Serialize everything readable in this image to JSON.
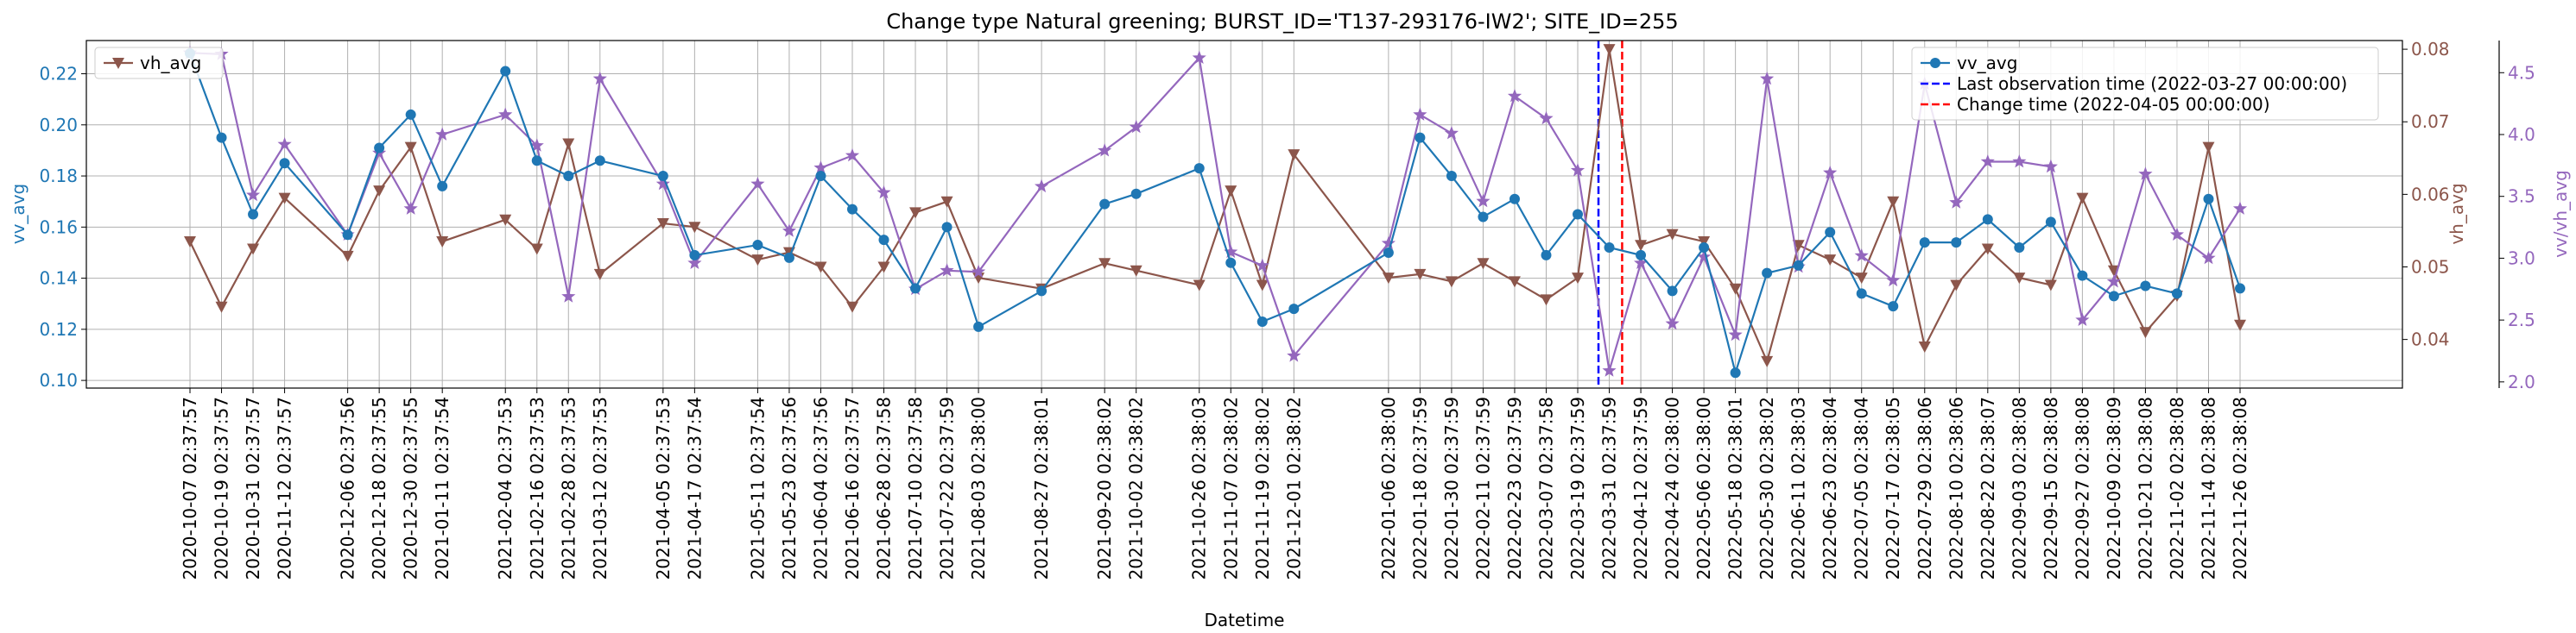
{
  "chart_data": {
    "type": "line",
    "title": "Change type Natural greening; BURST_ID='T137-293176-IW2'; SITE_ID=255",
    "xlabel": "Datetime",
    "dates": [
      "2020-10-07 02:37:57",
      "2020-10-19 02:37:57",
      "2020-10-31 02:37:57",
      "2020-11-12 02:37:57",
      "2020-12-06 02:37:56",
      "2020-12-18 02:37:55",
      "2020-12-30 02:37:55",
      "2021-01-11 02:37:54",
      "2021-02-04 02:37:53",
      "2021-02-16 02:37:53",
      "2021-02-28 02:37:53",
      "2021-03-12 02:37:53",
      "2021-04-05 02:37:53",
      "2021-04-17 02:37:54",
      "2021-05-11 02:37:54",
      "2021-05-23 02:37:56",
      "2021-06-04 02:37:56",
      "2021-06-16 02:37:57",
      "2021-06-28 02:37:58",
      "2021-07-10 02:37:58",
      "2021-07-22 02:37:59",
      "2021-08-03 02:38:00",
      "2021-08-27 02:38:01",
      "2021-09-20 02:38:02",
      "2021-10-02 02:38:02",
      "2021-10-26 02:38:03",
      "2021-11-07 02:38:02",
      "2021-11-19 02:38:02",
      "2021-12-01 02:38:02",
      "2022-01-06 02:38:00",
      "2022-01-18 02:37:59",
      "2022-01-30 02:37:59",
      "2022-02-11 02:37:59",
      "2022-02-23 02:37:59",
      "2022-03-07 02:37:58",
      "2022-03-19 02:37:59",
      "2022-03-31 02:37:59",
      "2022-04-12 02:37:59",
      "2022-04-24 02:38:00",
      "2022-05-06 02:38:00",
      "2022-05-18 02:38:01",
      "2022-05-30 02:38:02",
      "2022-06-11 02:38:03",
      "2022-06-23 02:38:04",
      "2022-07-05 02:38:04",
      "2022-07-17 02:38:05",
      "2022-07-29 02:38:06",
      "2022-08-10 02:38:06",
      "2022-08-22 02:38:07",
      "2022-09-03 02:38:08",
      "2022-09-15 02:38:08",
      "2022-09-27 02:38:08",
      "2022-10-09 02:38:09",
      "2022-10-21 02:38:08",
      "2022-11-02 02:38:08",
      "2022-11-14 02:38:08",
      "2022-11-26 02:38:08"
    ],
    "axes": {
      "left": {
        "label": "vv_avg",
        "ticks": [
          "0.10",
          "0.12",
          "0.14",
          "0.16",
          "0.18",
          "0.20",
          "0.22"
        ],
        "range": [
          0.097,
          0.233
        ],
        "color": "#1f77b4"
      },
      "right1": {
        "label": "vh_avg",
        "ticks": [
          "0.04",
          "0.05",
          "0.06",
          "0.07",
          "0.08"
        ],
        "range": [
          0.0333,
          0.0812
        ],
        "color": "#8c564b"
      },
      "right2": {
        "label": "vv/vh_avg",
        "ticks": [
          "2.0",
          "2.5",
          "3.0",
          "3.5",
          "4.0",
          "4.5"
        ],
        "range": [
          1.95,
          4.76
        ],
        "color": "#9467bd"
      }
    },
    "series": [
      {
        "name": "vv_avg",
        "axis": "left",
        "color": "#1f77b4",
        "marker": "circle",
        "values": [
          0.228,
          0.195,
          0.165,
          0.185,
          0.157,
          0.191,
          0.204,
          0.176,
          0.221,
          0.186,
          0.18,
          0.186,
          0.18,
          0.149,
          0.153,
          0.148,
          0.18,
          0.167,
          0.155,
          0.136,
          0.16,
          0.121,
          0.135,
          0.169,
          0.173,
          0.183,
          0.146,
          0.123,
          0.128,
          0.15,
          0.195,
          0.18,
          0.164,
          0.171,
          0.149,
          0.165,
          0.152,
          0.149,
          0.135,
          0.152,
          0.103,
          0.142,
          0.145,
          0.158,
          0.134,
          0.129,
          0.154,
          0.154,
          0.163,
          0.152,
          0.162,
          0.141,
          0.133,
          0.137,
          0.134,
          0.171,
          0.136
        ]
      },
      {
        "name": "vh_avg",
        "axis": "right1",
        "color": "#8c564b",
        "marker": "triangle-down",
        "values": [
          0.0535,
          0.0445,
          0.0525,
          0.0595,
          0.0515,
          0.0605,
          0.0665,
          0.0535,
          0.0565,
          0.0525,
          0.067,
          0.049,
          0.056,
          0.0555,
          0.051,
          0.052,
          0.05,
          0.0445,
          0.05,
          0.0575,
          0.059,
          0.0485,
          0.047,
          0.0505,
          0.0495,
          0.0475,
          0.0605,
          0.0475,
          0.0655,
          0.0485,
          0.049,
          0.048,
          0.0505,
          0.048,
          0.0455,
          0.0485,
          0.08,
          0.053,
          0.0545,
          0.0535,
          0.047,
          0.037,
          0.053,
          0.051,
          0.0485,
          0.059,
          0.039,
          0.0475,
          0.0525,
          0.0485,
          0.0475,
          0.0595,
          0.0495,
          0.041,
          0.046,
          0.0665,
          0.042
        ]
      },
      {
        "name": "vv/vh_avg",
        "axis": "right2",
        "color": "#9467bd",
        "marker": "star",
        "values": [
          4.66,
          4.65,
          3.51,
          3.92,
          3.19,
          3.85,
          3.4,
          4.0,
          4.16,
          3.91,
          2.69,
          4.45,
          3.6,
          2.96,
          3.6,
          3.22,
          3.73,
          3.83,
          3.53,
          2.75,
          2.9,
          2.89,
          3.58,
          3.87,
          4.06,
          4.62,
          3.05,
          2.94,
          2.21,
          3.12,
          4.16,
          4.01,
          3.46,
          4.31,
          4.13,
          3.71,
          2.09,
          2.96,
          2.47,
          3.01,
          2.38,
          4.45,
          2.93,
          3.69,
          3.02,
          2.82,
          4.41,
          3.45,
          3.78,
          3.78,
          3.74,
          2.5,
          2.81,
          3.68,
          3.19,
          3.0,
          3.4
        ]
      }
    ],
    "vlines": [
      {
        "date": "2022-03-27 00:00:00",
        "label": "Last observation time (2022-03-27 00:00:00)",
        "color": "#0000ff"
      },
      {
        "date": "2022-04-05 00:00:00",
        "label": "Change time (2022-04-05 00:00:00)",
        "color": "#ff0000"
      }
    ],
    "legends": {
      "upper_left": [
        "vh_avg"
      ],
      "upper_right": [
        "vv_avg",
        "Last observation time (2022-03-27 00:00:00)",
        "Change time (2022-04-05 00:00:00)"
      ]
    },
    "grid": true
  }
}
